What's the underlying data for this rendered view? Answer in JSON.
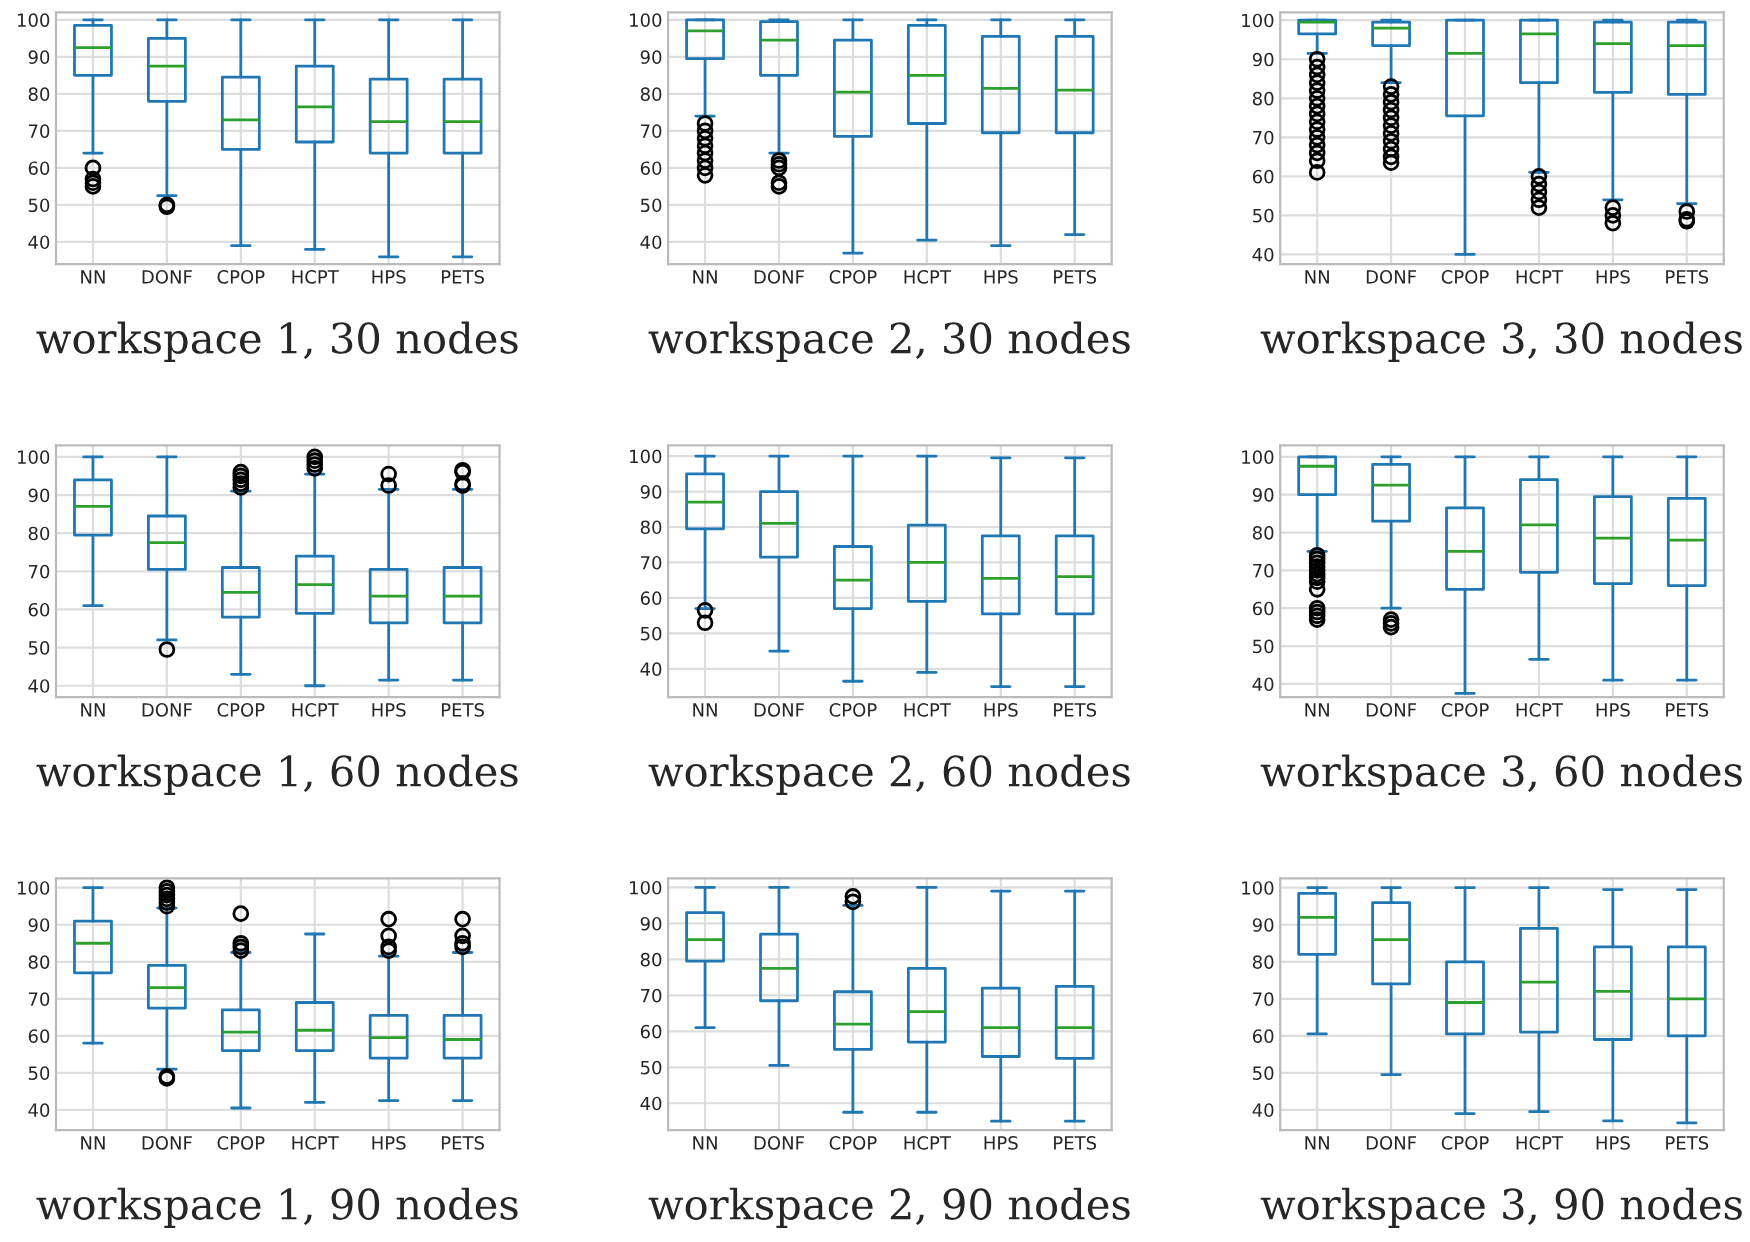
{
  "chart_data": [
    {
      "type": "box",
      "title": "workspace 1, 30 nodes",
      "categories": [
        "NN",
        "DONF",
        "CPOP",
        "HCPT",
        "HPS",
        "PETS"
      ],
      "color": "#1f77b4",
      "ylim": [
        34,
        102
      ],
      "yticks": [
        40,
        50,
        60,
        70,
        80,
        90,
        100
      ],
      "grid": true,
      "boxes": [
        {
          "low": 64,
          "q1": 85,
          "median": 92.5,
          "q3": 98.5,
          "high": 100,
          "outliers": [
            60,
            57,
            56,
            55
          ]
        },
        {
          "low": 52.5,
          "q1": 78,
          "median": 87.5,
          "q3": 95,
          "high": 100,
          "outliers": [
            50,
            49.5
          ]
        },
        {
          "low": 39,
          "q1": 65,
          "median": 73,
          "q3": 84.5,
          "high": 100
        },
        {
          "low": 38,
          "q1": 67,
          "median": 76.5,
          "q3": 87.5,
          "high": 100
        },
        {
          "low": 36,
          "q1": 64,
          "median": 72.5,
          "q3": 84,
          "high": 100
        },
        {
          "low": 36,
          "q1": 64,
          "median": 72.5,
          "q3": 84,
          "high": 100
        }
      ]
    },
    {
      "type": "box",
      "title": "workspace 2, 30 nodes",
      "categories": [
        "NN",
        "DONF",
        "CPOP",
        "HCPT",
        "HPS",
        "PETS"
      ],
      "color": "#1f77b4",
      "ylim": [
        34,
        102
      ],
      "yticks": [
        40,
        50,
        60,
        70,
        80,
        90,
        100
      ],
      "grid": true,
      "boxes": [
        {
          "low": 74,
          "q1": 89.5,
          "median": 97,
          "q3": 100,
          "high": 100,
          "outliers": [
            72,
            70,
            68,
            66,
            64,
            62,
            60,
            58
          ]
        },
        {
          "low": 64,
          "q1": 85,
          "median": 94.5,
          "q3": 99.5,
          "high": 100,
          "outliers": [
            62,
            61,
            60,
            56,
            55
          ]
        },
        {
          "low": 37,
          "q1": 68.5,
          "median": 80.5,
          "q3": 94.5,
          "high": 100
        },
        {
          "low": 40.5,
          "q1": 72,
          "median": 85,
          "q3": 98.5,
          "high": 100
        },
        {
          "low": 39,
          "q1": 69.5,
          "median": 81.5,
          "q3": 95.5,
          "high": 100
        },
        {
          "low": 42,
          "q1": 69.5,
          "median": 81,
          "q3": 95.5,
          "high": 100
        }
      ]
    },
    {
      "type": "box",
      "title": "workspace 3, 30 nodes",
      "categories": [
        "NN",
        "DONF",
        "CPOP",
        "HCPT",
        "HPS",
        "PETS"
      ],
      "color": "#1f77b4",
      "ylim": [
        37.5,
        102
      ],
      "yticks": [
        40,
        50,
        60,
        70,
        80,
        90,
        100
      ],
      "grid": true,
      "boxes": [
        {
          "low": 91.5,
          "q1": 96.5,
          "median": 99.5,
          "q3": 100,
          "high": 100,
          "outliers": [
            90,
            88,
            86,
            84,
            82,
            80,
            78,
            76,
            74,
            72,
            70,
            68,
            66,
            64,
            61
          ]
        },
        {
          "low": 84,
          "q1": 93.5,
          "median": 98,
          "q3": 99.5,
          "high": 100,
          "outliers": [
            83,
            81,
            79,
            77,
            75,
            73,
            71,
            69,
            67,
            65,
            63.5
          ]
        },
        {
          "low": 40,
          "q1": 75.5,
          "median": 91.5,
          "q3": 100,
          "high": 100
        },
        {
          "low": 61,
          "q1": 84,
          "median": 96.5,
          "q3": 100,
          "high": 100,
          "outliers": [
            60,
            58,
            56,
            54,
            52
          ]
        },
        {
          "low": 54,
          "q1": 81.5,
          "median": 94,
          "q3": 99.5,
          "high": 100,
          "outliers": [
            52,
            50,
            48
          ]
        },
        {
          "low": 53,
          "q1": 81,
          "median": 93.5,
          "q3": 99.5,
          "high": 100,
          "outliers": [
            51,
            49,
            48.5
          ]
        }
      ]
    },
    {
      "type": "box",
      "title": "workspace 1, 60 nodes",
      "categories": [
        "NN",
        "DONF",
        "CPOP",
        "HCPT",
        "HPS",
        "PETS"
      ],
      "color": "#1f77b4",
      "ylim": [
        37,
        103
      ],
      "yticks": [
        40,
        50,
        60,
        70,
        80,
        90,
        100
      ],
      "grid": true,
      "boxes": [
        {
          "low": 61,
          "q1": 79.5,
          "median": 87,
          "q3": 94,
          "high": 100
        },
        {
          "low": 52,
          "q1": 70.5,
          "median": 77.5,
          "q3": 84.5,
          "high": 100,
          "outliers": [
            49.5
          ]
        },
        {
          "low": 43,
          "q1": 58,
          "median": 64.5,
          "q3": 71,
          "high": 91,
          "outliers": [
            92,
            93,
            94,
            95,
            96
          ]
        },
        {
          "low": 40,
          "q1": 59,
          "median": 66.5,
          "q3": 74,
          "high": 95.5,
          "outliers": [
            97,
            98,
            99,
            100
          ]
        },
        {
          "low": 41.5,
          "q1": 56.5,
          "median": 63.5,
          "q3": 70.5,
          "high": 91.5,
          "outliers": [
            92.5,
            95.5
          ]
        },
        {
          "low": 41.5,
          "q1": 56.5,
          "median": 63.5,
          "q3": 71,
          "high": 91.5,
          "outliers": [
            92.5,
            93,
            96,
            96.5
          ]
        }
      ]
    },
    {
      "type": "box",
      "title": "workspace 2, 60 nodes",
      "categories": [
        "NN",
        "DONF",
        "CPOP",
        "HCPT",
        "HPS",
        "PETS"
      ],
      "color": "#1f77b4",
      "ylim": [
        32,
        103
      ],
      "yticks": [
        40,
        50,
        60,
        70,
        80,
        90,
        100
      ],
      "grid": true,
      "boxes": [
        {
          "low": 57,
          "q1": 79.5,
          "median": 87,
          "q3": 95,
          "high": 100,
          "outliers": [
            56.5,
            53
          ]
        },
        {
          "low": 45,
          "q1": 71.5,
          "median": 81,
          "q3": 90,
          "high": 100
        },
        {
          "low": 36.5,
          "q1": 57,
          "median": 65,
          "q3": 74.5,
          "high": 100
        },
        {
          "low": 39,
          "q1": 59,
          "median": 70,
          "q3": 80.5,
          "high": 100
        },
        {
          "low": 35,
          "q1": 55.5,
          "median": 65.5,
          "q3": 77.5,
          "high": 99.5
        },
        {
          "low": 35,
          "q1": 55.5,
          "median": 66,
          "q3": 77.5,
          "high": 99.5
        }
      ]
    },
    {
      "type": "box",
      "title": "workspace 3, 60 nodes",
      "categories": [
        "NN",
        "DONF",
        "CPOP",
        "HCPT",
        "HPS",
        "PETS"
      ],
      "color": "#1f77b4",
      "ylim": [
        36.5,
        103
      ],
      "yticks": [
        40,
        50,
        60,
        70,
        80,
        90,
        100
      ],
      "grid": true,
      "boxes": [
        {
          "low": 75,
          "q1": 90,
          "median": 97.5,
          "q3": 100,
          "high": 100,
          "outliers": [
            74,
            73,
            72,
            71,
            70,
            69,
            68,
            67,
            65,
            60,
            59,
            58,
            57
          ]
        },
        {
          "low": 60,
          "q1": 83,
          "median": 92.5,
          "q3": 98,
          "high": 100,
          "outliers": [
            57,
            56,
            55
          ]
        },
        {
          "low": 37.5,
          "q1": 65,
          "median": 75,
          "q3": 86.5,
          "high": 100
        },
        {
          "low": 46.5,
          "q1": 69.5,
          "median": 82,
          "q3": 94,
          "high": 100
        },
        {
          "low": 41,
          "q1": 66.5,
          "median": 78.5,
          "q3": 89.5,
          "high": 100
        },
        {
          "low": 41,
          "q1": 66,
          "median": 78,
          "q3": 89,
          "high": 100
        }
      ]
    },
    {
      "type": "box",
      "title": "workspace 1, 90 nodes",
      "categories": [
        "NN",
        "DONF",
        "CPOP",
        "HCPT",
        "HPS",
        "PETS"
      ],
      "color": "#1f77b4",
      "ylim": [
        34.5,
        102.5
      ],
      "yticks": [
        40,
        50,
        60,
        70,
        80,
        90,
        100
      ],
      "grid": true,
      "boxes": [
        {
          "low": 58,
          "q1": 77,
          "median": 85,
          "q3": 91,
          "high": 100
        },
        {
          "low": 51,
          "q1": 67.5,
          "median": 73,
          "q3": 79,
          "high": 94.5,
          "outliers": [
            95,
            96,
            97,
            98,
            99,
            100,
            49,
            48.5
          ]
        },
        {
          "low": 40.5,
          "q1": 56,
          "median": 61,
          "q3": 67,
          "high": 82.5,
          "outliers": [
            83,
            84,
            85,
            93
          ]
        },
        {
          "low": 42,
          "q1": 56,
          "median": 61.5,
          "q3": 69,
          "high": 87.5
        },
        {
          "low": 42.5,
          "q1": 54,
          "median": 59.5,
          "q3": 65.5,
          "high": 81.5,
          "outliers": [
            83,
            84,
            87,
            91.5
          ]
        },
        {
          "low": 42.5,
          "q1": 54,
          "median": 59,
          "q3": 65.5,
          "high": 82.5,
          "outliers": [
            84,
            85,
            87,
            91.5
          ]
        }
      ]
    },
    {
      "type": "box",
      "title": "workspace 2, 90 nodes",
      "categories": [
        "NN",
        "DONF",
        "CPOP",
        "HCPT",
        "HPS",
        "PETS"
      ],
      "color": "#1f77b4",
      "ylim": [
        32.5,
        102.5
      ],
      "yticks": [
        40,
        50,
        60,
        70,
        80,
        90,
        100
      ],
      "grid": true,
      "boxes": [
        {
          "low": 61,
          "q1": 79.5,
          "median": 85.5,
          "q3": 93,
          "high": 100
        },
        {
          "low": 50.5,
          "q1": 68.5,
          "median": 77.5,
          "q3": 87,
          "high": 100
        },
        {
          "low": 37.5,
          "q1": 55,
          "median": 62,
          "q3": 71,
          "high": 95,
          "outliers": [
            96,
            97.5
          ]
        },
        {
          "low": 37.5,
          "q1": 57,
          "median": 65.5,
          "q3": 77.5,
          "high": 100
        },
        {
          "low": 35,
          "q1": 53,
          "median": 61,
          "q3": 72,
          "high": 99
        },
        {
          "low": 35,
          "q1": 52.5,
          "median": 61,
          "q3": 72.5,
          "high": 99
        }
      ]
    },
    {
      "type": "box",
      "title": "workspace 3, 90 nodes",
      "categories": [
        "NN",
        "DONF",
        "CPOP",
        "HCPT",
        "HPS",
        "PETS"
      ],
      "color": "#1f77b4",
      "ylim": [
        34.5,
        102.5
      ],
      "yticks": [
        40,
        50,
        60,
        70,
        80,
        90,
        100
      ],
      "grid": true,
      "boxes": [
        {
          "low": 60.5,
          "q1": 82,
          "median": 92,
          "q3": 98.5,
          "high": 100
        },
        {
          "low": 49.5,
          "q1": 74,
          "median": 86,
          "q3": 96,
          "high": 100
        },
        {
          "low": 39,
          "q1": 60.5,
          "median": 69,
          "q3": 80,
          "high": 100
        },
        {
          "low": 39.5,
          "q1": 61,
          "median": 74.5,
          "q3": 89,
          "high": 100
        },
        {
          "low": 37,
          "q1": 59,
          "median": 72,
          "q3": 84,
          "high": 99.5
        },
        {
          "low": 36.5,
          "q1": 60,
          "median": 70,
          "q3": 84,
          "high": 99.5
        }
      ]
    }
  ]
}
